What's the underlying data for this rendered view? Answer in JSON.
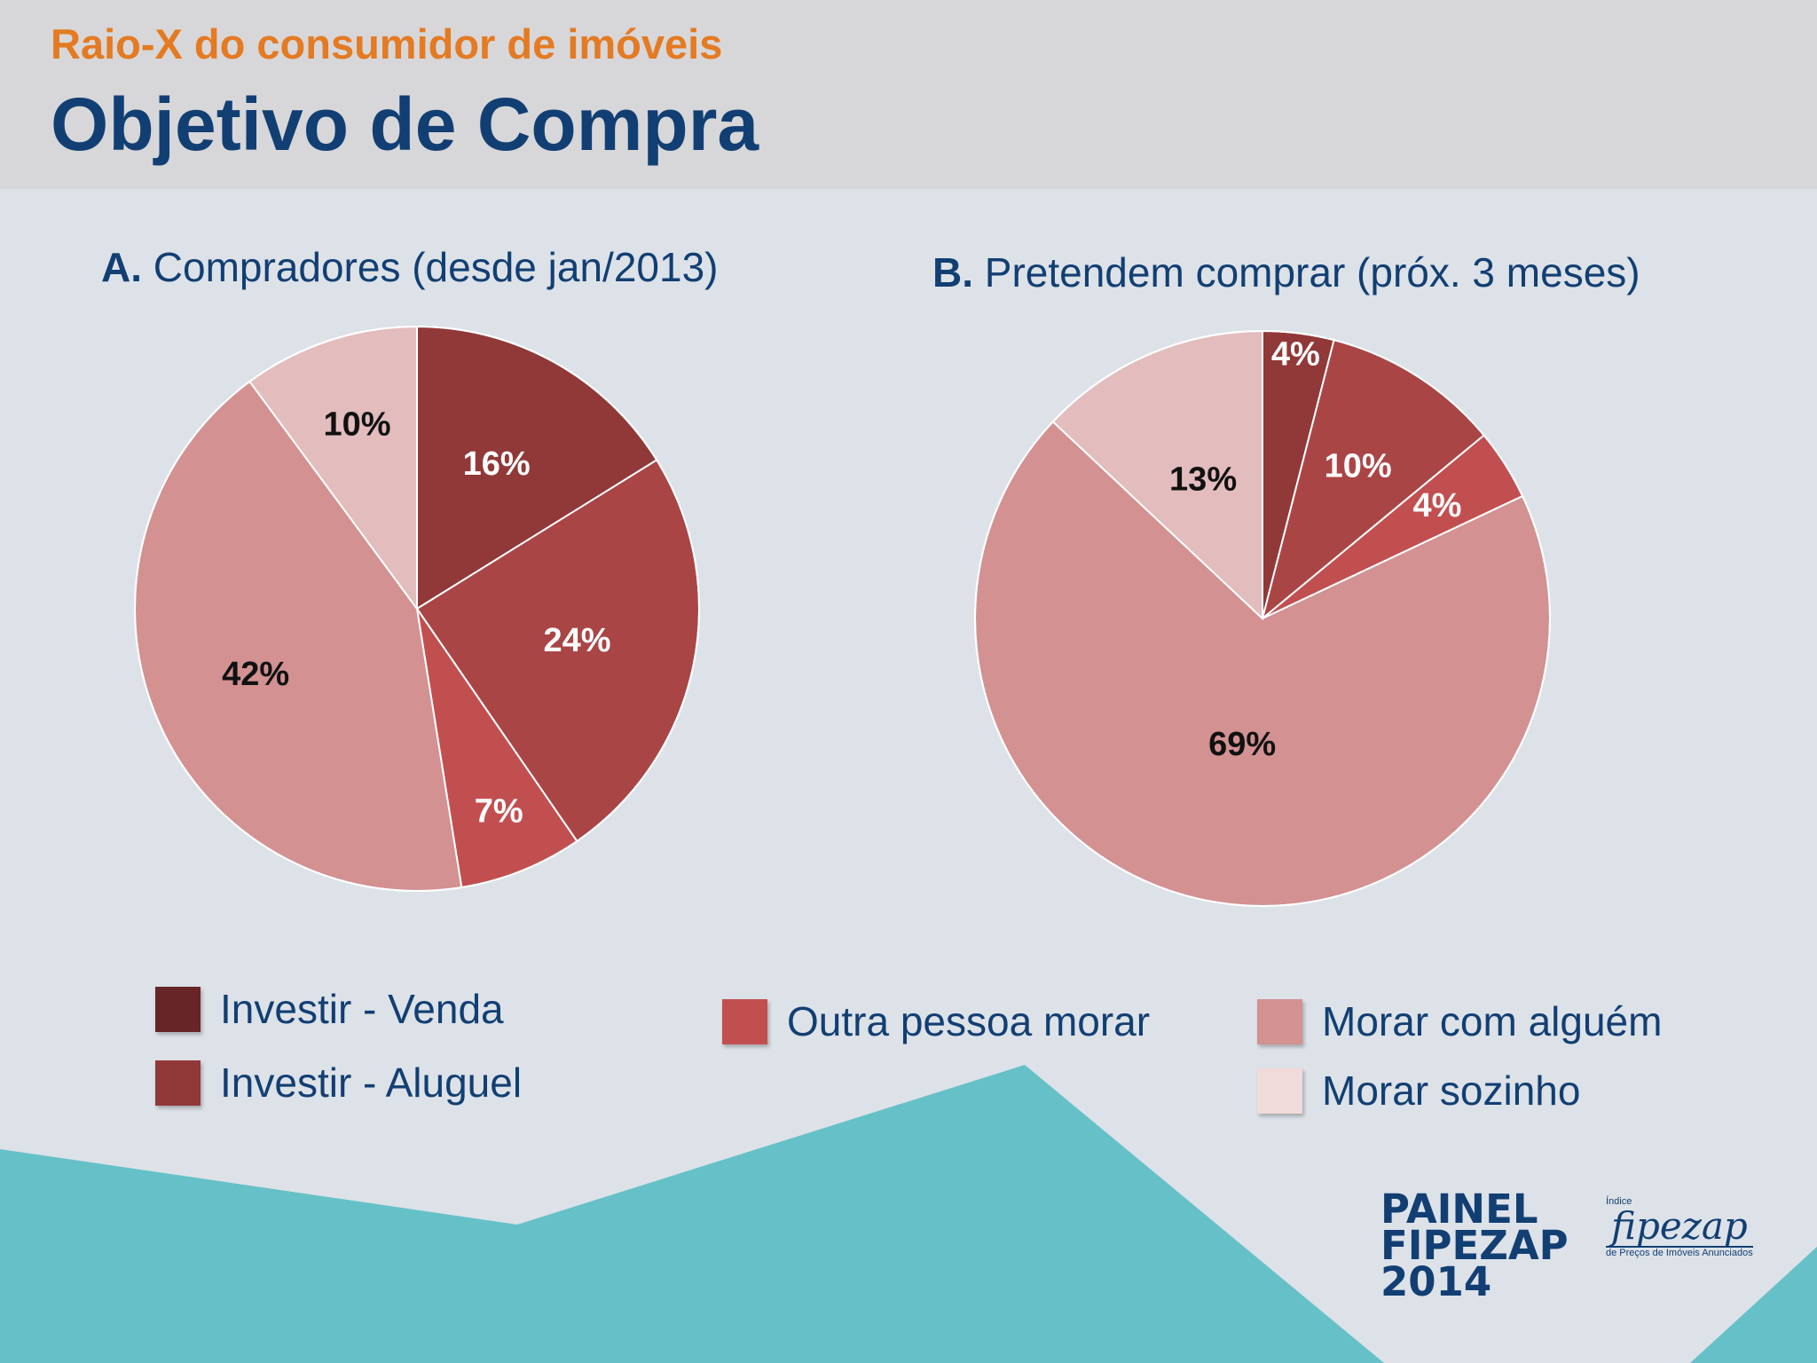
{
  "header": {
    "supertitle": "Raio-X do consumidor de imóveis",
    "title": "Objetivo de Compra"
  },
  "chart_data": [
    {
      "type": "pie",
      "title_letter": "A.",
      "title": "Compradores (desde jan/2013)",
      "categories": [
        "Investir - Venda",
        "Investir - Aluguel",
        "Outra pessoa morar",
        "Morar com alguém",
        "Morar sozinho"
      ],
      "values": [
        16,
        24,
        7,
        42,
        10
      ],
      "labels": [
        "16%",
        "24%",
        "7%",
        "42%",
        "10%"
      ]
    },
    {
      "type": "pie",
      "title_letter": "B.",
      "title": "Pretendem comprar (próx. 3 meses)",
      "categories": [
        "Investir - Venda",
        "Investir - Aluguel",
        "Outra pessoa morar",
        "Morar com alguém",
        "Morar sozinho"
      ],
      "values": [
        4,
        10,
        4,
        69,
        13
      ],
      "labels": [
        "4%",
        "10%",
        "4%",
        "69%",
        "13%"
      ]
    }
  ],
  "colors": {
    "slice": [
      "#913838",
      "#aa4546",
      "#c24f50",
      "#d39192",
      "#e3bcbd"
    ],
    "legend": [
      "#672527",
      "#913838",
      "#c24f50",
      "#d39192",
      "#f1dada"
    ],
    "label_text": [
      "#ffffff",
      "#ffffff",
      "#ffffff",
      "#111111",
      "#111111"
    ]
  },
  "legend": [
    {
      "label": "Investir - Venda"
    },
    {
      "label": "Investir - Aluguel"
    },
    {
      "label": "Outra pessoa morar"
    },
    {
      "label": "Morar com alguém"
    },
    {
      "label": "Morar sozinho"
    }
  ],
  "logo": {
    "painel_line1": "PAINEL",
    "painel_line2": "FIPEZAP",
    "painel_line3": "2014",
    "fz_small": "Índice",
    "fz_word": "fipezap",
    "fz_tag": "de Preços de Imóveis Anunciados"
  }
}
